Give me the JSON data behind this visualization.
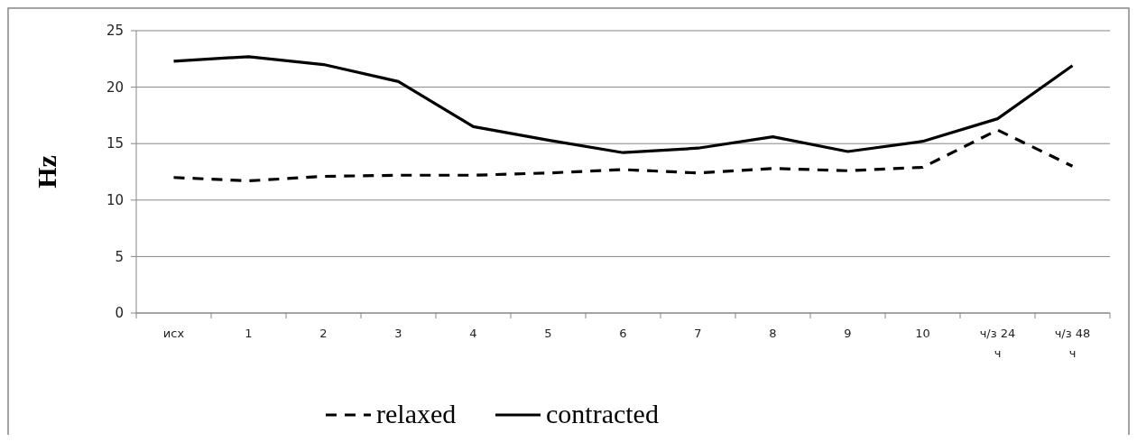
{
  "chart_data": {
    "type": "line",
    "ylabel": "Hz",
    "categories": [
      "исх",
      "1",
      "2",
      "3",
      "4",
      "5",
      "6",
      "7",
      "8",
      "9",
      "10",
      "ч/з 24 ч",
      "ч/з 48 ч"
    ],
    "series": [
      {
        "name": "relaxed",
        "color": "#000000",
        "line_style": "dashed",
        "values": [
          12.0,
          11.7,
          12.1,
          12.2,
          12.2,
          12.4,
          12.7,
          12.4,
          12.8,
          12.6,
          12.9,
          16.2,
          13.0
        ]
      },
      {
        "name": "contracted",
        "color": "#000000",
        "line_style": "solid",
        "values": [
          22.3,
          22.7,
          22.0,
          20.5,
          16.5,
          15.3,
          14.2,
          14.6,
          15.6,
          14.3,
          15.2,
          17.2,
          21.9
        ]
      }
    ],
    "ylim": [
      0,
      25
    ],
    "yticks": [
      0,
      5,
      10,
      15,
      20,
      25
    ],
    "grid": "y",
    "legend": "bottom"
  }
}
